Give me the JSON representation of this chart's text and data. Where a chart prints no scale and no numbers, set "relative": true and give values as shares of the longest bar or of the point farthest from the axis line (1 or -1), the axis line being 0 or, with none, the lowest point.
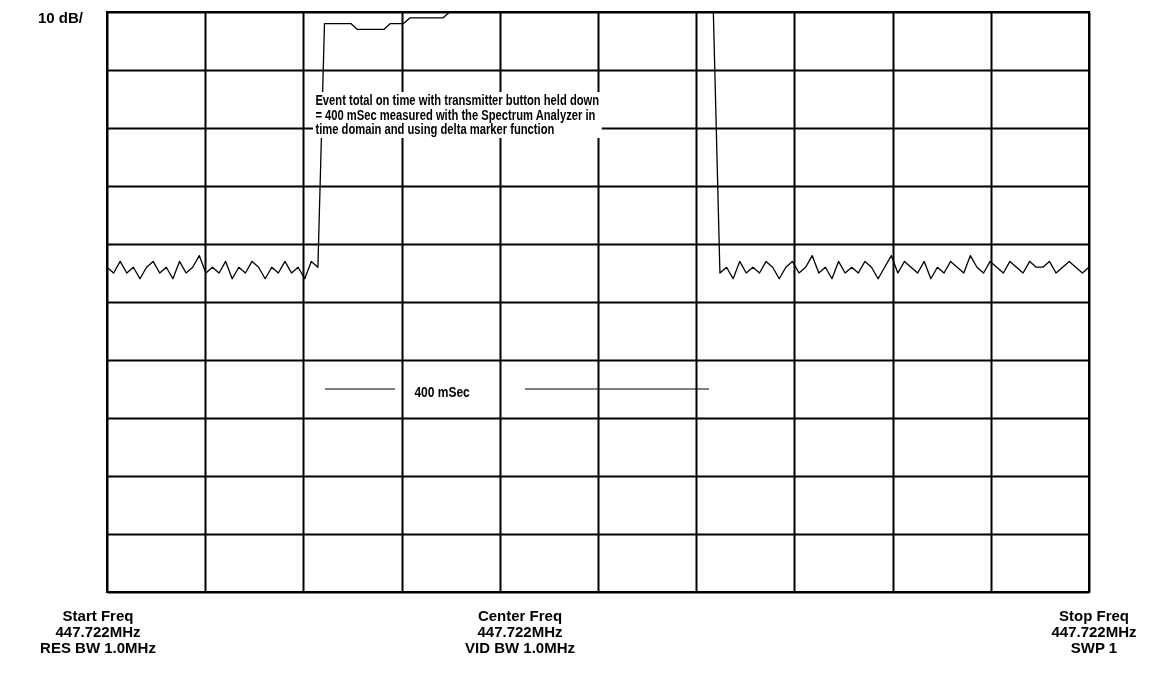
{
  "chart_data": {
    "type": "line",
    "relative": true,
    "grid": true,
    "categories": [
      null,
      null,
      null,
      null,
      null,
      null,
      null,
      null,
      null,
      null,
      null,
      null,
      null,
      null,
      null,
      null,
      null,
      null,
      null,
      null,
      null,
      null,
      null,
      null,
      null,
      null,
      null,
      null,
      null,
      null,
      null,
      null,
      null,
      null,
      null,
      null,
      null,
      null,
      null,
      null,
      null,
      null,
      null,
      null,
      null,
      null,
      null,
      null,
      null,
      null,
      null,
      null,
      null,
      null,
      null,
      null,
      null,
      null,
      null,
      null,
      null,
      null,
      null,
      null,
      null,
      null,
      null,
      null,
      null,
      null,
      null,
      null,
      null,
      null,
      null,
      null,
      null,
      null,
      null,
      null,
      null,
      null,
      null,
      null,
      null,
      null,
      null,
      null,
      null,
      null,
      null,
      null,
      null,
      null,
      null,
      null,
      null,
      null,
      null,
      null,
      null,
      null,
      null,
      null,
      null,
      null,
      null,
      null,
      null,
      null,
      null,
      null,
      null,
      null,
      null,
      null,
      null,
      null,
      null,
      null,
      null,
      null,
      null,
      null,
      null,
      null,
      null,
      null,
      null,
      null,
      null,
      null,
      null,
      null,
      null,
      null,
      null,
      null,
      null,
      null,
      null,
      null,
      null,
      null,
      null,
      null,
      null,
      null,
      null,
      null
    ],
    "series": [
      {
        "color": "#000000",
        "values": [
          0.56,
          0.55,
          0.57,
          0.55,
          0.56,
          0.54,
          0.56,
          0.57,
          0.55,
          0.56,
          0.54,
          0.57,
          0.55,
          0.56,
          0.58,
          0.55,
          0.56,
          0.55,
          0.57,
          0.54,
          0.56,
          0.55,
          0.57,
          0.56,
          0.54,
          0.56,
          0.55,
          0.57,
          0.55,
          0.56,
          0.54,
          0.57,
          0.56,
          0.98,
          0.98,
          0.98,
          0.98,
          0.98,
          0.97,
          0.97,
          0.97,
          0.97,
          0.97,
          0.98,
          0.98,
          0.98,
          0.99,
          0.99,
          0.99,
          0.99,
          0.99,
          0.99,
          1,
          1,
          1,
          1,
          1,
          1,
          1,
          1,
          1,
          1,
          1,
          1,
          1,
          1,
          1,
          1,
          1,
          1,
          1,
          1,
          1,
          1,
          1,
          1,
          1,
          1,
          1,
          1,
          1,
          1,
          1,
          1,
          1,
          1,
          1,
          1,
          1,
          1,
          1,
          1,
          1,
          0.55,
          0.56,
          0.54,
          0.57,
          0.55,
          0.56,
          0.55,
          0.57,
          0.56,
          0.54,
          0.56,
          0.57,
          0.55,
          0.56,
          0.58,
          0.55,
          0.56,
          0.54,
          0.57,
          0.55,
          0.56,
          0.55,
          0.57,
          0.56,
          0.54,
          0.56,
          0.58,
          0.55,
          0.57,
          0.56,
          0.55,
          0.57,
          0.54,
          0.56,
          0.55,
          0.57,
          0.56,
          0.55,
          0.58,
          0.56,
          0.55,
          0.57,
          0.56,
          0.55,
          0.57,
          0.56,
          0.55,
          0.57,
          0.56,
          0.56,
          0.57,
          0.55,
          0.56,
          0.57,
          0.56,
          0.55,
          0.56
        ]
      }
    ],
    "annotations": [
      "10 dB/",
      "Event total on time with transmitter button held down\n= 400 mSec measured with the Spectrum Analyzer in\ntime domain and using delta marker function",
      "400 mSec",
      "Start Freq\n447.722MHz\nRES BW 1.0MHz",
      "Center Freq\n447.722MHz\nVID BW 1.0MHz",
      "Stop Freq\n447.722MHz\nSWP 1"
    ]
  }
}
